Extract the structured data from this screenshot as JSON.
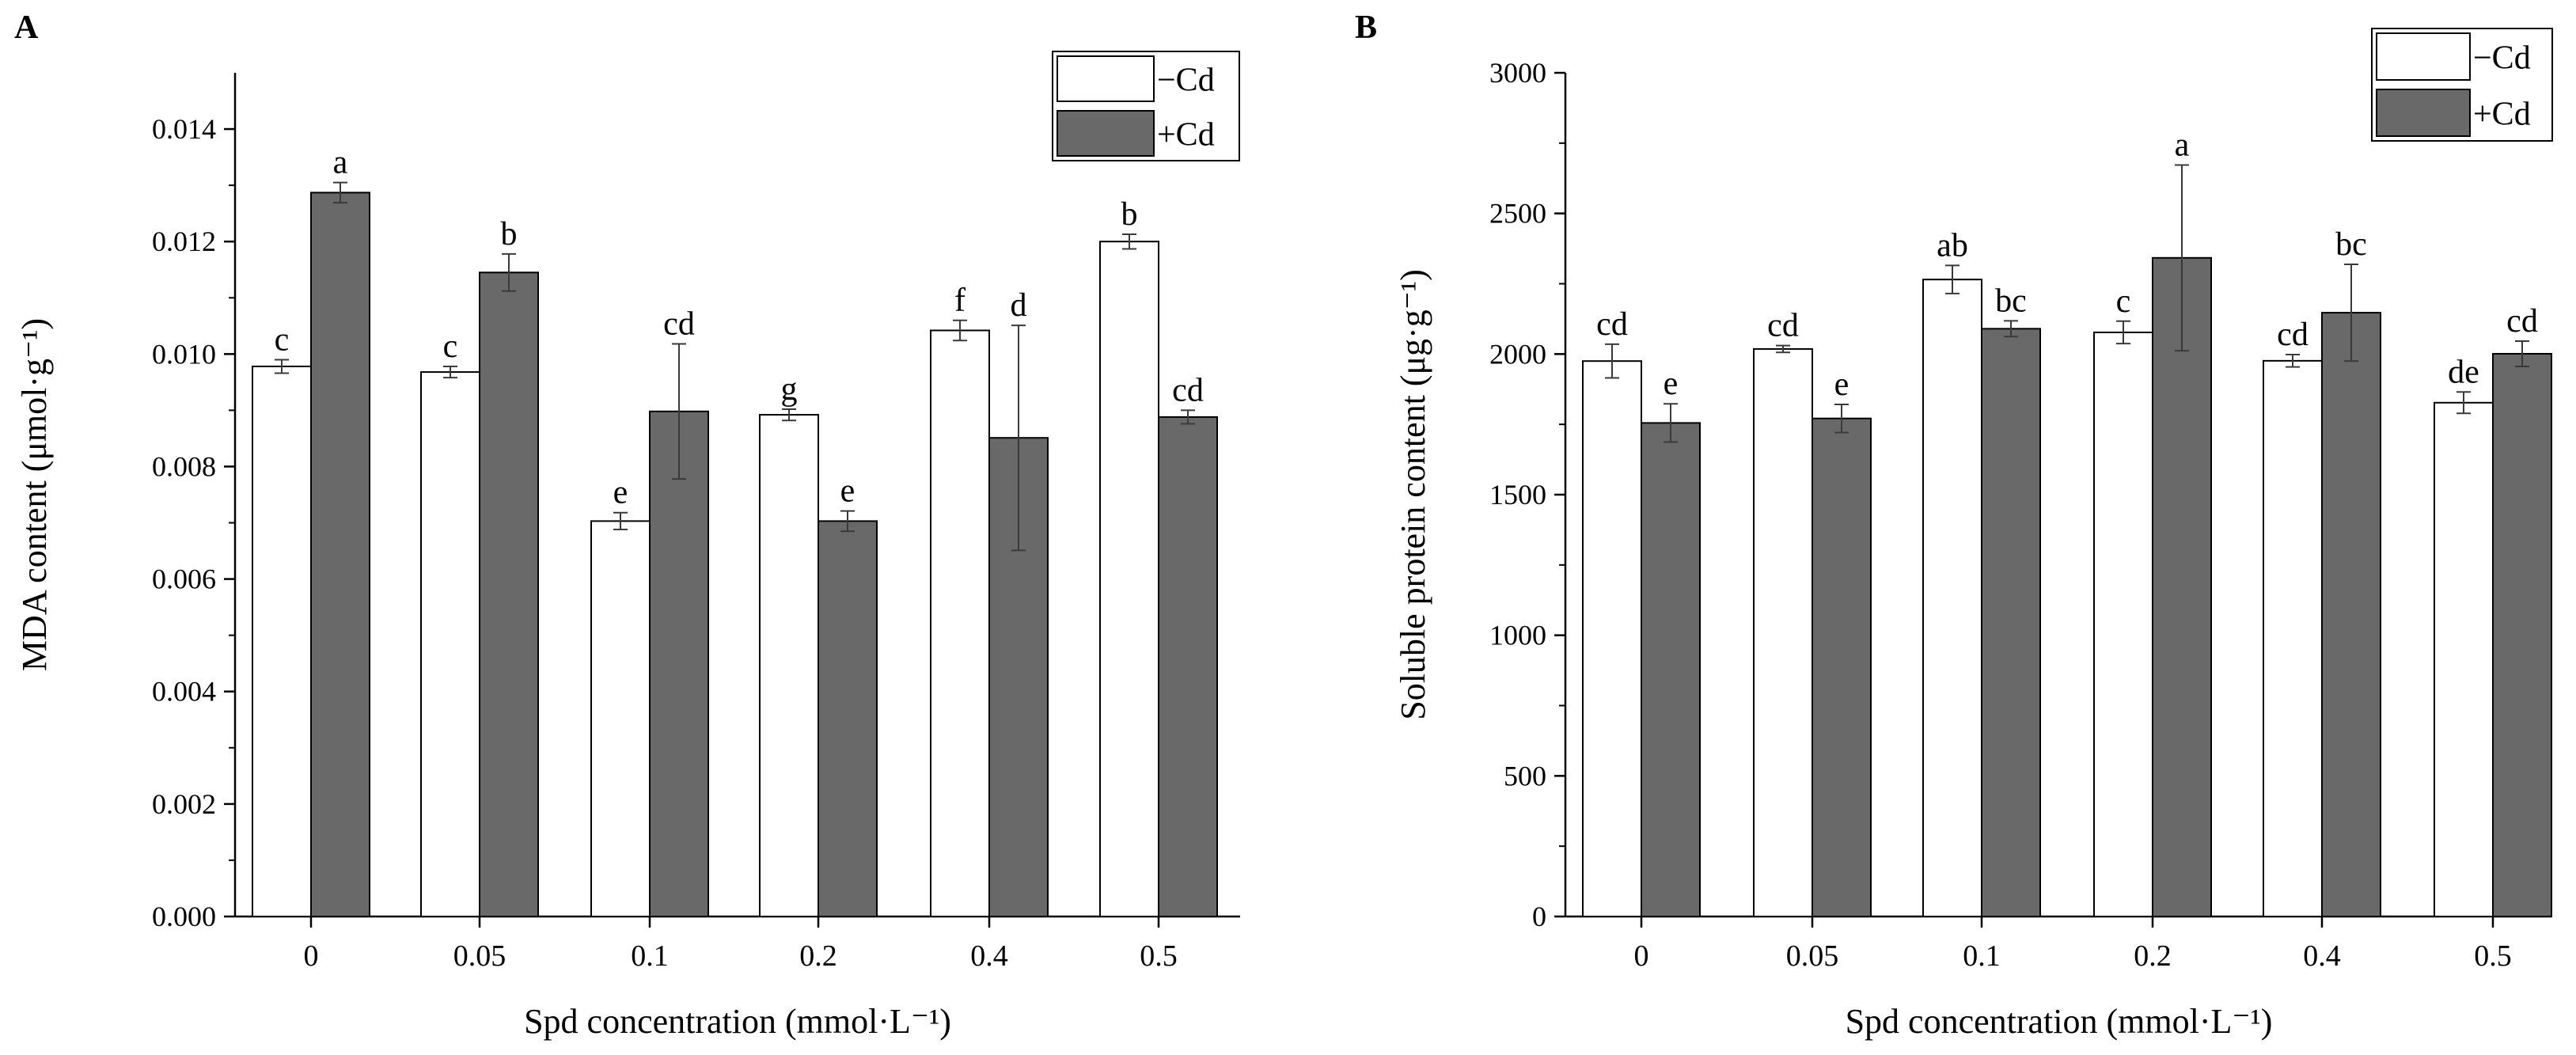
{
  "chart_data": [
    {
      "panel_label": "A",
      "type": "bar",
      "categories": [
        "0",
        "0.05",
        "0.1",
        "0.2",
        "0.4",
        "0.5"
      ],
      "series": [
        {
          "name": "−Cd",
          "values": [
            0.00978,
            0.00968,
            0.00703,
            0.00892,
            0.01042,
            0.012
          ],
          "errors": [
            0.00012,
            0.0001,
            0.00015,
            0.0001,
            0.00018,
            0.00013
          ],
          "letters": [
            "c",
            "c",
            "e",
            "g",
            "f",
            "b"
          ]
        },
        {
          "name": "+Cd",
          "values": [
            0.01287,
            0.01145,
            0.00898,
            0.00703,
            0.00851,
            0.00888
          ],
          "errors": [
            0.00018,
            0.00033,
            0.0012,
            0.00018,
            0.002,
            0.00012
          ],
          "letters": [
            "a",
            "b",
            "cd",
            "e",
            "d",
            "cd"
          ]
        }
      ],
      "ylabel": "MDA content (μmol·g⁻¹)",
      "xlabel": "Spd concentration (mmol·L⁻¹)",
      "ylim": [
        0,
        0.015
      ],
      "yticks": [
        "0.000",
        "0.002",
        "0.004",
        "0.006",
        "0.008",
        "0.010",
        "0.012",
        "0.014"
      ],
      "legend_position": "top-right"
    },
    {
      "panel_label": "B",
      "type": "bar",
      "categories": [
        "0",
        "0.05",
        "0.1",
        "0.2",
        "0.4",
        "0.5"
      ],
      "series": [
        {
          "name": "−Cd",
          "values": [
            1975,
            2018,
            2265,
            2077,
            1976,
            1827
          ],
          "errors": [
            60,
            12,
            50,
            40,
            22,
            38
          ],
          "letters": [
            "cd",
            "cd",
            "ab",
            "c",
            "cd",
            "de"
          ]
        },
        {
          "name": "+Cd",
          "values": [
            1755,
            1771,
            2090,
            2342,
            2147,
            2001
          ],
          "errors": [
            68,
            50,
            28,
            330,
            172,
            45
          ],
          "letters": [
            "e",
            "e",
            "bc",
            "a",
            "bc",
            "cd"
          ]
        }
      ],
      "ylabel": "Soluble protein content (μg·g⁻¹)",
      "xlabel": "Spd concentration (mmol·L⁻¹)",
      "ylim": [
        0,
        3000
      ],
      "yticks": [
        "0",
        "500",
        "1000",
        "1500",
        "2000",
        "2500",
        "3000"
      ],
      "legend_position": "top-right"
    }
  ],
  "colors": {
    "minus_cd_fill": "#ffffff",
    "plus_cd_fill": "#696969",
    "stroke": "#000000",
    "error_bar": "#3a3a3a"
  }
}
